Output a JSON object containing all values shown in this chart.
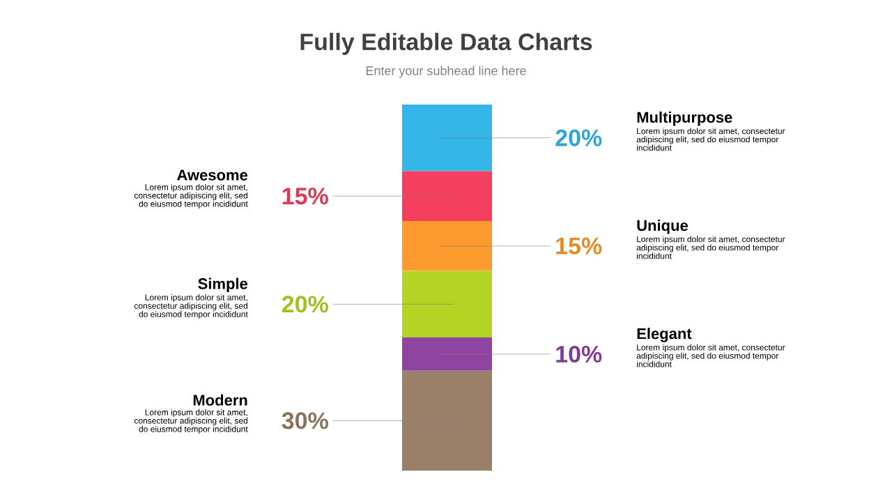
{
  "chart_data": {
    "type": "bar",
    "stacked": true,
    "title": "Fully Editable Data Charts",
    "subtitle": "Enter your subhead line here",
    "categories": [
      null
    ],
    "series": [
      {
        "color": "#9a8068",
        "values": [
          30
        ],
        "value_labels": [
          "30%"
        ]
      },
      {
        "color": "#8e44a0",
        "values": [
          10
        ],
        "value_labels": [
          "10%"
        ]
      },
      {
        "color": "#b4d424",
        "values": [
          20
        ],
        "value_labels": [
          "20%"
        ]
      },
      {
        "color": "#fd9a2e",
        "values": [
          15
        ],
        "value_labels": [
          "15%"
        ]
      },
      {
        "color": "#f43f5e",
        "values": [
          15
        ],
        "value_labels": [
          "15%"
        ]
      },
      {
        "color": "#35b6e9",
        "values": [
          20
        ],
        "value_labels": [
          "20%"
        ]
      }
    ],
    "annotations": [
      "Modern",
      "Lorem ipsum dolor sit amet, consectetur adipiscing elit, sed do eiusmod tempor incididunt",
      "Elegant",
      "Lorem ipsum dolor sit amet, consectetur adipiscing elit, sed do eiusmod tempor incididunt",
      "Simple",
      "Lorem ipsum dolor sit amet, consectetur adipiscing elit, sed do eiusmod tempor incididunt",
      "Unique",
      "Lorem ipsum dolor sit amet, consectetur adipiscing elit, sed do eiusmod tempor incididunt",
      "Awesome",
      "Lorem ipsum dolor sit amet, consectetur adipiscing elit, sed do eiusmod tempor incididunt",
      "Multipurpose",
      "Lorem ipsum dolor sit amet, consectetur adipiscing elit, sed do eiusmod tempor incididunt"
    ]
  }
}
